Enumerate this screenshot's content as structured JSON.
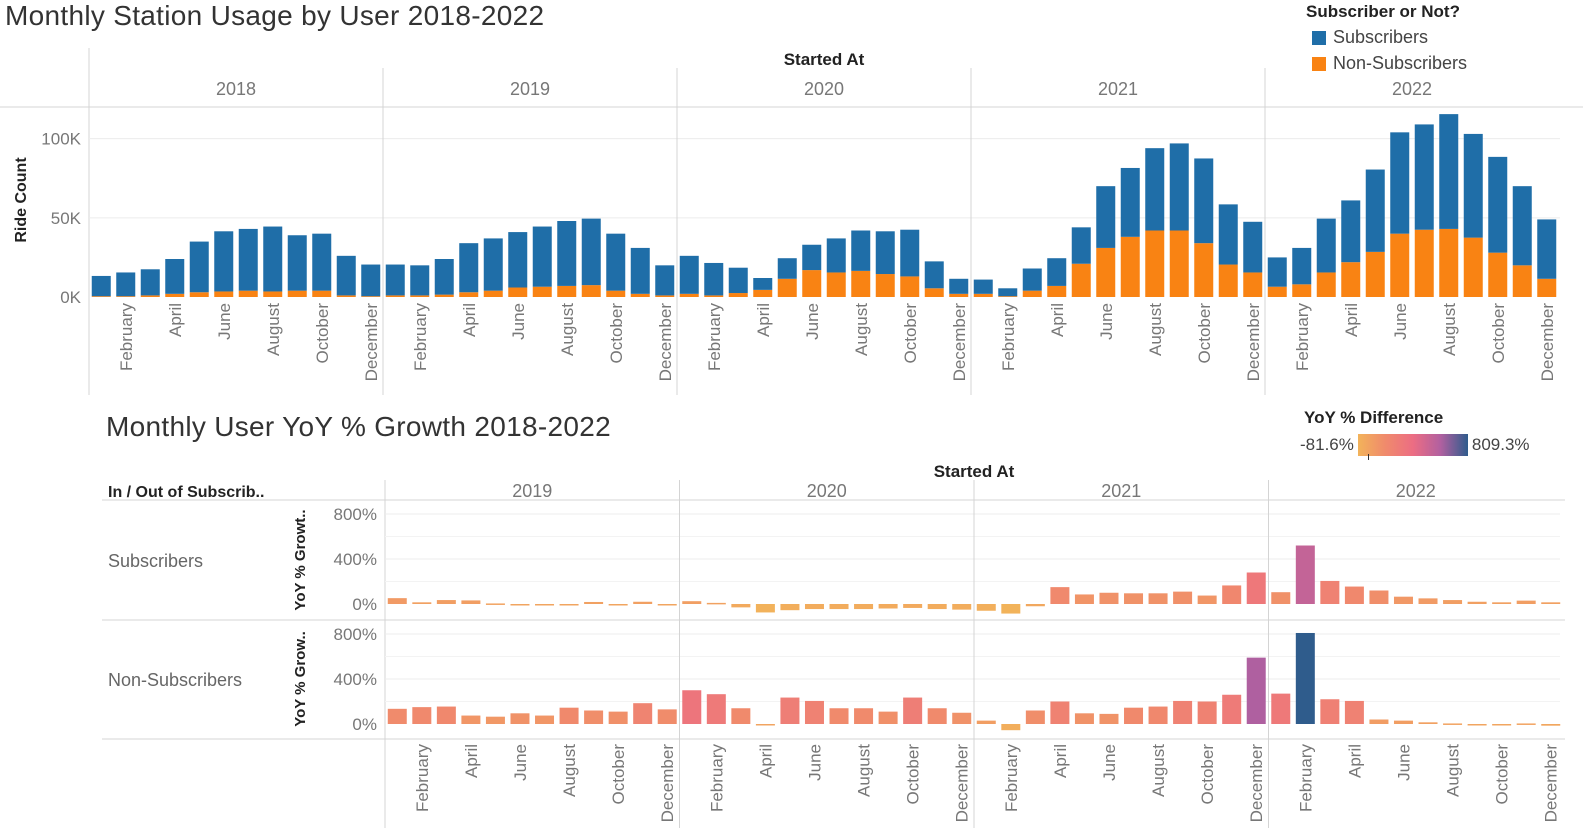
{
  "top": {
    "title": "Monthly Station Usage by User 2018-2022",
    "column_header": "Started At",
    "y_axis_label": "Ride Count",
    "legend": {
      "title": "Subscriber or Not?",
      "items": [
        {
          "label": "Subscribers",
          "color": "#1f6ea8"
        },
        {
          "label": "Non-Subscribers",
          "color": "#f98313"
        }
      ]
    }
  },
  "bottom": {
    "title": "Monthly User YoY % Growth 2018-2022",
    "column_header": "Started At",
    "row_header": "In / Out of Subscrib..",
    "row_labels": [
      "Subscribers",
      "Non-Subscribers"
    ],
    "y_axis_labels": [
      "YoY % Growt..",
      "YoY % Grow.."
    ],
    "legend": {
      "title": "YoY % Difference",
      "min_label": "-81.6%",
      "max_label": "809.3%"
    }
  },
  "chart_data": [
    {
      "type": "bar",
      "stacked": true,
      "title": "Monthly Station Usage by User 2018-2022",
      "ylabel": "Ride Count",
      "ylim": [
        0,
        120000
      ],
      "yticks": [
        {
          "value": 0,
          "label": "0K"
        },
        {
          "value": 50000,
          "label": "50K"
        },
        {
          "value": 100000,
          "label": "100K"
        }
      ],
      "years": [
        "2018",
        "2019",
        "2020",
        "2021",
        "2022"
      ],
      "categories": [
        "January",
        "February",
        "March",
        "April",
        "May",
        "June",
        "July",
        "August",
        "September",
        "October",
        "November",
        "December"
      ],
      "x_tick_labels": [
        "February",
        "April",
        "June",
        "August",
        "October",
        "December"
      ],
      "series": [
        {
          "name": "Subscribers",
          "color": "#1f6ea8",
          "values": {
            "2018": [
              12800,
              15000,
              16500,
              22000,
              32000,
              38000,
              39000,
              41000,
              35000,
              36000,
              25000,
              20000
            ],
            "2019": [
              19500,
              19000,
              22500,
              31000,
              33000,
              35000,
              38000,
              41000,
              42000,
              36000,
              29000,
              19000
            ],
            "2020": [
              24000,
              20500,
              16000,
              7500,
              13000,
              16000,
              21500,
              25500,
              27000,
              29500,
              17000,
              9500
            ],
            "2021": [
              9000,
              5000,
              14000,
              17500,
              23000,
              39000,
              43500,
              52000,
              55000,
              53500,
              38000,
              32000
            ],
            "2022": [
              18500,
              23000,
              34000,
              39000,
              52000,
              64000,
              66500,
              72500,
              65500,
              60500,
              50000,
              37500
            ]
          }
        },
        {
          "name": "Non-Subscribers",
          "color": "#f98313",
          "values": {
            "2018": [
              500,
              500,
              1000,
              2000,
              3000,
              3500,
              4000,
              3500,
              4000,
              4000,
              1000,
              500
            ],
            "2019": [
              1000,
              1000,
              1500,
              3000,
              4000,
              6000,
              6500,
              7000,
              7500,
              4000,
              2000,
              1000
            ],
            "2020": [
              2000,
              1000,
              2500,
              4500,
              11500,
              17000,
              15500,
              16500,
              14500,
              13000,
              5500,
              2000
            ],
            "2021": [
              2000,
              500,
              4000,
              7000,
              21000,
              31000,
              38000,
              42000,
              42000,
              34000,
              20500,
              15500
            ],
            "2022": [
              6500,
              8000,
              15500,
              22000,
              28500,
              40000,
              42500,
              43000,
              37500,
              28000,
              20000,
              11500
            ]
          }
        }
      ]
    },
    {
      "type": "bar",
      "title": "Monthly User YoY % Growth 2018-2022",
      "ylabel": "YoY % Growth",
      "ylim": [
        -100,
        900
      ],
      "yticks": [
        {
          "value": 0,
          "label": "0%"
        },
        {
          "value": 400,
          "label": "400%"
        },
        {
          "value": 800,
          "label": "800%"
        }
      ],
      "color_range": {
        "min": -81.6,
        "max": 809.3,
        "stops": [
          "#f2b35a",
          "#f08a6c",
          "#ec6d83",
          "#b160a0",
          "#2f5c8c"
        ]
      },
      "years": [
        "2019",
        "2020",
        "2021",
        "2022"
      ],
      "categories": [
        "January",
        "February",
        "March",
        "April",
        "May",
        "June",
        "July",
        "August",
        "September",
        "October",
        "November",
        "December"
      ],
      "x_tick_labels": [
        "February",
        "April",
        "June",
        "August",
        "October",
        "December"
      ],
      "series": [
        {
          "name": "Subscribers",
          "values": {
            "2019": [
              52,
              15,
              35,
              32,
              5,
              -5,
              -5,
              -3,
              18,
              -5,
              20,
              -5
            ],
            "2020": [
              25,
              10,
              -30,
              -75,
              -55,
              -45,
              -45,
              -45,
              -40,
              -35,
              -45,
              -50
            ],
            "2021": [
              -60,
              -85,
              -20,
              150,
              85,
              100,
              95,
              95,
              110,
              75,
              165,
              280
            ],
            "2022": [
              105,
              520,
              205,
              155,
              120,
              65,
              50,
              35,
              20,
              15,
              30,
              15
            ]
          }
        },
        {
          "name": "Non-Subscribers",
          "values": {
            "2019": [
              135,
              150,
              155,
              75,
              65,
              95,
              75,
              145,
              120,
              110,
              185,
              130
            ],
            "2020": [
              300,
              265,
              140,
              0,
              235,
              205,
              140,
              140,
              110,
              235,
              140,
              100
            ],
            "2021": [
              30,
              -55,
              120,
              200,
              95,
              90,
              145,
              155,
              205,
              200,
              260,
              590
            ],
            "2022": [
              270,
              809,
              220,
              205,
              40,
              30,
              15,
              5,
              -5,
              -10,
              5,
              -15
            ]
          }
        }
      ]
    }
  ]
}
